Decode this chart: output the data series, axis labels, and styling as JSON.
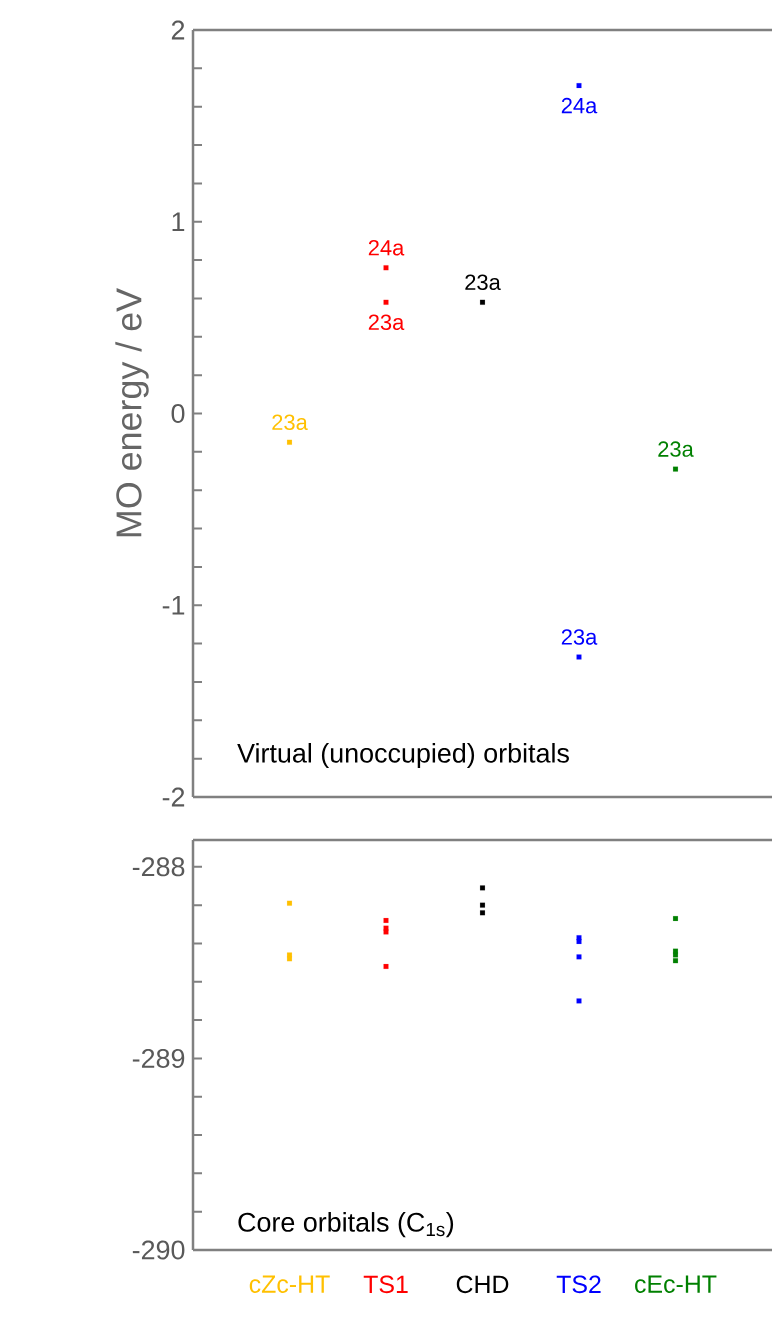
{
  "chart_data": [
    {
      "type": "scatter",
      "ylabel": "MO energy / eV",
      "categories": [
        "cZc-HT",
        "TS1",
        "CHD",
        "TS2",
        "cEc-HT"
      ],
      "tick_labels": "y",
      "ylim": [
        -2,
        2
      ],
      "yticks": [
        -2,
        {
          "value": -1.8,
          "label": null
        },
        {
          "value": -1.6,
          "label": null
        },
        {
          "value": -1.4,
          "label": null
        },
        {
          "value": -1.2,
          "label": null
        },
        -1,
        {
          "value": -0.8,
          "label": null
        },
        {
          "value": -0.6,
          "label": null
        },
        {
          "value": -0.4,
          "label": null
        },
        {
          "value": -0.2,
          "label": null
        },
        0,
        {
          "value": 0.2,
          "label": null
        },
        {
          "value": 0.4,
          "label": null
        },
        {
          "value": 0.6,
          "label": null
        },
        {
          "value": 0.8,
          "label": null
        },
        1,
        {
          "value": 1.2,
          "label": null
        },
        {
          "value": 1.4,
          "label": null
        },
        {
          "value": 1.6,
          "label": null
        },
        {
          "value": 1.8,
          "label": null
        },
        2
      ],
      "series": [
        {
          "values": [
            -0.15,
            0.76,
            0.58,
            1.71,
            -0.29
          ],
          "colors": [
            "#ffc000",
            "#ff0000",
            "#000000",
            "#0000ff",
            "#008000"
          ]
        },
        {
          "values": [
            null,
            0.58,
            null,
            -1.27,
            null
          ],
          "colors": [
            "#ffc000",
            "#ff0000",
            "#000000",
            "#0000ff",
            "#008000"
          ]
        }
      ],
      "annotations": [
        {
          "text": "23a",
          "x": "cZc-HT",
          "y": -0.15
        },
        {
          "text": "24a",
          "x": "TS1",
          "y": 0.76
        },
        {
          "text": "23a",
          "x": "TS1",
          "y": 0.58
        },
        {
          "text": "23a",
          "x": "CHD",
          "y": 0.58
        },
        {
          "text": "24a",
          "x": "TS2",
          "y": 1.71
        },
        {
          "text": "23a",
          "x": "TS2",
          "y": -1.27
        },
        {
          "text": "23a",
          "x": "cEc-HT",
          "y": -0.29
        },
        "Virtual (unoccupied) orbitals"
      ]
    },
    {
      "type": "scatter",
      "categories": [
        "cZc-HT",
        "TS1",
        "CHD",
        "TS2",
        "cEc-HT"
      ],
      "ylim": [
        -290,
        -287.86
      ],
      "yticks": [
        -290,
        {
          "value": -289.8,
          "label": null
        },
        {
          "value": -289.6,
          "label": null
        },
        {
          "value": -289.4,
          "label": null
        },
        {
          "value": -289.2,
          "label": null
        },
        -289,
        {
          "value": -288.8,
          "label": null
        },
        {
          "value": -288.6,
          "label": null
        },
        {
          "value": -288.4,
          "label": null
        },
        {
          "value": -288.2,
          "label": null
        },
        -288
      ],
      "series": [
        {
          "values": [
            -288.19,
            -288.28,
            -288.11,
            -288.37,
            -288.27
          ],
          "colors": [
            "#ffc000",
            "#ff0000",
            "#000000",
            "#0000ff",
            "#008000"
          ]
        },
        {
          "values": [
            -288.46,
            -288.32,
            -288.2,
            -288.39,
            -288.44
          ],
          "colors": [
            "#ffc000",
            "#ff0000",
            "#000000",
            "#0000ff",
            "#008000"
          ]
        },
        {
          "values": [
            -288.48,
            -288.34,
            -288.24,
            -288.47,
            -288.46
          ],
          "colors": [
            "#ffc000",
            "#ff0000",
            "#000000",
            "#0000ff",
            "#008000"
          ]
        },
        {
          "values": [
            null,
            -288.52,
            null,
            -288.7,
            -288.49
          ],
          "colors": [
            "#ffc000",
            "#ff0000",
            "#000000",
            "#0000ff",
            "#008000"
          ]
        }
      ],
      "annotations": [
        "Core orbitals (C$_{1s}$)"
      ]
    }
  ]
}
